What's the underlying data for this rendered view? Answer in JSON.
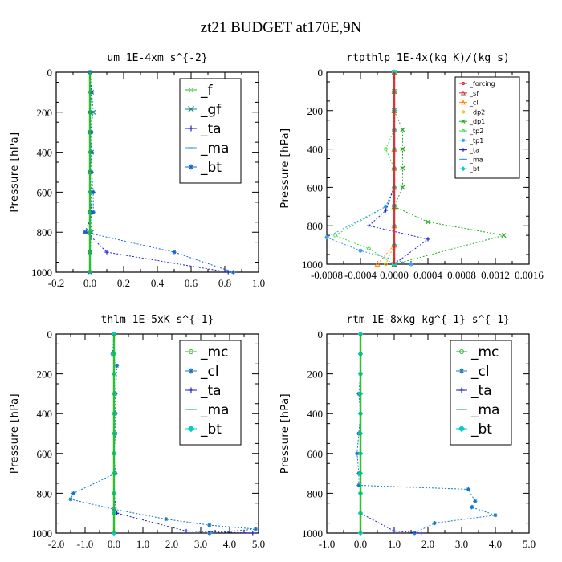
{
  "figure_title": "zt21  BUDGET at170E,9N",
  "chart_data": [
    {
      "type": "line",
      "title": "um  1E-4xm s^{-2}",
      "ylabel": "Pressure [hPa]",
      "xlim": [
        -0.2,
        1.0
      ],
      "ylim": [
        1000,
        0
      ],
      "xticks": [
        -0.2,
        0.0,
        0.2,
        0.4,
        0.6,
        0.8,
        1.0
      ],
      "xtick_labels": [
        "-0.2",
        "0.0",
        "0.2",
        "0.4",
        "0.6",
        "0.8",
        "1.0"
      ],
      "yticks": [
        0,
        200,
        400,
        600,
        800,
        1000
      ],
      "ytick_labels": [
        "0",
        "200",
        "400",
        "600",
        "800",
        "1000"
      ],
      "legend_position": "top-right",
      "legend_size": "large",
      "series": [
        {
          "name": "_f",
          "color": "#22bb22",
          "marker": "circle",
          "x": [
            0.0,
            0.0,
            0.0,
            0.0,
            0.0,
            0.0,
            0.0,
            0.0,
            0.0,
            0.0,
            0.0
          ],
          "y": [
            0,
            100,
            200,
            300,
            400,
            500,
            600,
            700,
            800,
            900,
            1000
          ]
        },
        {
          "name": "_gf",
          "color": "#118888",
          "marker": "x",
          "x": [
            0.0,
            0.01,
            0.02,
            0.0,
            0.01,
            0.0,
            0.01,
            0.0,
            0.01,
            0.0,
            0.0
          ],
          "y": [
            0,
            100,
            200,
            300,
            400,
            500,
            600,
            700,
            800,
            900,
            1000
          ]
        },
        {
          "name": "_ta",
          "color": "#2222cc",
          "marker": "plus",
          "x": [
            0.0,
            0.01,
            0.0,
            0.0,
            0.0,
            0.0,
            0.0,
            0.01,
            -0.02,
            0.1,
            0.82
          ],
          "y": [
            0,
            100,
            200,
            300,
            400,
            500,
            600,
            700,
            800,
            900,
            1000
          ]
        },
        {
          "name": "_ma",
          "color": "#3399dd",
          "marker": "dash",
          "x": [
            0.0,
            0.0,
            0.0,
            0.0,
            0.0,
            0.0,
            0.0,
            0.0,
            0.0,
            0.0,
            0.0
          ],
          "y": [
            0,
            100,
            200,
            300,
            400,
            500,
            600,
            700,
            800,
            900,
            1000
          ]
        },
        {
          "name": "_bt",
          "color": "#1166cc",
          "marker": "star",
          "x": [
            0.0,
            0.01,
            0.0,
            0.01,
            0.01,
            0.01,
            0.02,
            0.02,
            -0.03,
            0.5,
            0.85
          ],
          "y": [
            0,
            100,
            200,
            300,
            400,
            500,
            600,
            700,
            800,
            900,
            1000
          ]
        }
      ]
    },
    {
      "type": "line",
      "title": "rtpthlp  1E-4x(kg K)/(kg s)",
      "ylabel": "Pressure [hPa]",
      "xlim": [
        -0.0008,
        0.0016
      ],
      "ylim": [
        1000,
        0
      ],
      "xticks": [
        -0.0008,
        -0.0004,
        0.0,
        0.0004,
        0.0008,
        0.0012,
        0.0016
      ],
      "xtick_labels": [
        "-0.0008",
        "-0.0004",
        "0.0000",
        "0.0004",
        "0.0008",
        "0.0012",
        "0.0016"
      ],
      "yticks": [
        0,
        200,
        400,
        600,
        800,
        1000
      ],
      "ytick_labels": [
        "0",
        "200",
        "400",
        "600",
        "800",
        "1000"
      ],
      "legend_position": "top-right",
      "legend_size": "small",
      "series": [
        {
          "name": "_forcing",
          "color": "#dd2222",
          "marker": "circle",
          "x": [
            0.0,
            0.0,
            0.0,
            0.0,
            0.0,
            0.0,
            0.0,
            0.0,
            0.0,
            0.0,
            0.0
          ],
          "y": [
            0,
            100,
            200,
            300,
            400,
            500,
            600,
            700,
            800,
            900,
            1000
          ]
        },
        {
          "name": "_sf",
          "color": "#cc3333",
          "marker": "tri",
          "x": [
            0.0,
            0.0,
            0.0,
            0.0,
            0.0,
            0.0,
            0.0,
            0.0,
            0.0,
            0.0,
            0.0
          ],
          "y": [
            0,
            100,
            200,
            300,
            400,
            500,
            600,
            700,
            800,
            900,
            1000
          ]
        },
        {
          "name": "_cl",
          "color": "#ff8800",
          "marker": "tri",
          "x": [
            0.0,
            0.0,
            0.0,
            0.0,
            0.0,
            0.0,
            0.0,
            0.0,
            0.0,
            0.0,
            -0.0002
          ],
          "y": [
            0,
            100,
            200,
            300,
            400,
            500,
            600,
            700,
            800,
            900,
            1000
          ]
        },
        {
          "name": "_dp2",
          "color": "#ddbb00",
          "marker": "circle",
          "x": [
            0.0,
            0.0,
            0.0,
            0.0,
            0.0,
            0.0,
            0.0,
            0.0,
            0.0,
            0.0,
            -0.0001
          ],
          "y": [
            0,
            100,
            200,
            300,
            400,
            500,
            600,
            700,
            800,
            900,
            1000
          ]
        },
        {
          "name": "_dp1",
          "color": "#22aa22",
          "marker": "x",
          "x": [
            0.0,
            0.0,
            0.0,
            0.0001,
            0.0001,
            0.0001,
            0.0001,
            0.0,
            0.0004,
            0.0013,
            0.0
          ],
          "y": [
            0,
            100,
            200,
            300,
            400,
            500,
            600,
            700,
            780,
            850,
            1000
          ]
        },
        {
          "name": "_tp2",
          "color": "#44dd44",
          "marker": "circle",
          "x": [
            0.0,
            0.0,
            0.0,
            0.0,
            -0.0001,
            0.0,
            0.0,
            -0.0001,
            -0.0007,
            -0.0003,
            0.0
          ],
          "y": [
            0,
            100,
            200,
            300,
            400,
            500,
            600,
            700,
            850,
            920,
            1000
          ]
        },
        {
          "name": "_tp1",
          "color": "#3399ff",
          "marker": "star",
          "x": [
            0.0,
            0.0,
            0.0,
            0.0,
            0.0,
            0.0,
            0.0,
            -0.0001,
            -0.0008,
            -0.0004,
            0.0002
          ],
          "y": [
            0,
            100,
            200,
            300,
            400,
            500,
            600,
            700,
            860,
            930,
            1000
          ]
        },
        {
          "name": "_ta",
          "color": "#2222cc",
          "marker": "plus",
          "x": [
            0.0,
            0.0,
            0.0,
            0.0,
            0.0,
            0.0,
            0.0,
            -0.0001,
            -0.0003,
            0.0004,
            0.0
          ],
          "y": [
            0,
            100,
            200,
            300,
            400,
            500,
            600,
            720,
            800,
            870,
            1000
          ]
        },
        {
          "name": "_ma",
          "color": "#3399dd",
          "marker": "dash",
          "x": [
            0.0,
            0.0,
            0.0,
            0.0,
            0.0,
            0.0,
            0.0,
            0.0,
            0.0,
            0.0,
            0.0
          ],
          "y": [
            0,
            100,
            200,
            300,
            400,
            500,
            600,
            700,
            800,
            900,
            1000
          ]
        },
        {
          "name": "_bt",
          "color": "#00cccc",
          "marker": "diamond",
          "x": [
            0.0,
            0.0,
            0.0,
            0.0,
            0.0,
            0.0,
            0.0,
            0.0,
            0.0,
            0.0,
            0.0
          ],
          "y": [
            0,
            100,
            200,
            300,
            400,
            500,
            600,
            700,
            800,
            900,
            1000
          ]
        }
      ]
    },
    {
      "type": "line",
      "title": "thlm  1E-5xK s^{-1}",
      "ylabel": "Pressure [hPa]",
      "xlim": [
        -2.0,
        5.0
      ],
      "ylim": [
        1000,
        0
      ],
      "xticks": [
        -2.0,
        -1.0,
        0.0,
        1.0,
        2.0,
        3.0,
        4.0,
        5.0
      ],
      "xtick_labels": [
        "-2.0",
        "-1.0",
        "0.0",
        "1.0",
        "2.0",
        "3.0",
        "4.0",
        "5.0"
      ],
      "yticks": [
        0,
        200,
        400,
        600,
        800,
        1000
      ],
      "ytick_labels": [
        "0",
        "200",
        "400",
        "600",
        "800",
        "1000"
      ],
      "legend_position": "top-right",
      "legend_size": "large",
      "series": [
        {
          "name": "_mc",
          "color": "#22bb22",
          "marker": "circle",
          "x": [
            0.0,
            0.0,
            0.0,
            0.0,
            0.0,
            0.0,
            0.0,
            0.0,
            0.0,
            0.0,
            0.0
          ],
          "y": [
            0,
            100,
            200,
            300,
            400,
            500,
            600,
            700,
            800,
            900,
            1000
          ]
        },
        {
          "name": "_cl",
          "color": "#1177cc",
          "marker": "star",
          "x": [
            0.0,
            -0.05,
            0.1,
            0.05,
            0.05,
            0.05,
            0.0,
            0.05,
            -1.4,
            -1.5,
            0.0,
            1.8,
            3.3,
            4.9,
            3.3
          ],
          "y": [
            0,
            100,
            160,
            300,
            400,
            500,
            600,
            700,
            800,
            830,
            880,
            930,
            960,
            980,
            1000
          ]
        },
        {
          "name": "_ta",
          "color": "#2222cc",
          "marker": "plus",
          "x": [
            0.0,
            0.0,
            0.0,
            0.0,
            0.0,
            0.0,
            0.0,
            0.0,
            0.0,
            0.1,
            2.5,
            4.8
          ],
          "y": [
            0,
            100,
            200,
            300,
            400,
            500,
            600,
            700,
            800,
            900,
            990,
            1000
          ]
        },
        {
          "name": "_ma",
          "color": "#3399dd",
          "marker": "dash",
          "x": [
            0.0,
            0.0,
            0.0,
            0.0,
            0.0,
            0.0,
            0.0,
            0.0,
            0.0,
            0.0,
            0.0
          ],
          "y": [
            0,
            100,
            200,
            300,
            400,
            500,
            600,
            700,
            800,
            900,
            1000
          ]
        },
        {
          "name": "_bt",
          "color": "#00cccc",
          "marker": "diamond",
          "x": [
            0.0,
            0.0,
            0.0,
            0.0,
            0.0,
            0.0,
            0.0,
            0.0,
            0.0,
            0.0,
            0.0
          ],
          "y": [
            0,
            100,
            200,
            300,
            400,
            500,
            600,
            700,
            800,
            900,
            1000
          ]
        }
      ]
    },
    {
      "type": "line",
      "title": "rtm  1E-8xkg kg^{-1} s^{-1}",
      "ylabel": "Pressure [hPa]",
      "xlim": [
        -1.0,
        5.0
      ],
      "ylim": [
        1000,
        0
      ],
      "xticks": [
        -1.0,
        0.0,
        1.0,
        2.0,
        3.0,
        4.0,
        5.0
      ],
      "xtick_labels": [
        "-1.0",
        "0.0",
        "1.0",
        "2.0",
        "3.0",
        "4.0",
        "5.0"
      ],
      "yticks": [
        0,
        200,
        400,
        600,
        800,
        1000
      ],
      "ytick_labels": [
        "0",
        "200",
        "400",
        "600",
        "800",
        "1000"
      ],
      "legend_position": "top-right",
      "legend_size": "large",
      "series": [
        {
          "name": "_mc",
          "color": "#22bb22",
          "marker": "circle",
          "x": [
            0.0,
            0.0,
            0.0,
            0.0,
            0.0,
            0.0,
            0.0,
            0.0,
            0.0,
            0.0,
            0.0
          ],
          "y": [
            0,
            100,
            200,
            300,
            400,
            500,
            600,
            700,
            800,
            900,
            1000
          ]
        },
        {
          "name": "_cl",
          "color": "#1177cc",
          "marker": "star",
          "x": [
            0.0,
            0.0,
            0.0,
            -0.05,
            0.0,
            -0.05,
            -0.1,
            -0.05,
            -0.05,
            3.2,
            3.4,
            3.3,
            4.0,
            2.2,
            1.6
          ],
          "y": [
            0,
            100,
            200,
            300,
            400,
            500,
            600,
            700,
            760,
            780,
            840,
            870,
            910,
            950,
            1000
          ]
        },
        {
          "name": "_ta",
          "color": "#2222cc",
          "marker": "plus",
          "x": [
            0.0,
            0.0,
            0.0,
            0.0,
            0.0,
            0.0,
            0.0,
            0.0,
            0.0,
            0.0,
            1.0,
            1.8
          ],
          "y": [
            0,
            100,
            200,
            300,
            400,
            500,
            600,
            700,
            800,
            900,
            990,
            1000
          ]
        },
        {
          "name": "_ma",
          "color": "#3399dd",
          "marker": "dash",
          "x": [
            0.0,
            0.0,
            0.0,
            0.0,
            0.0,
            0.0,
            0.0,
            0.0,
            0.0,
            0.0,
            0.0
          ],
          "y": [
            0,
            100,
            200,
            300,
            400,
            500,
            600,
            700,
            800,
            900,
            1000
          ]
        },
        {
          "name": "_bt",
          "color": "#00cccc",
          "marker": "diamond",
          "x": [
            0.0,
            0.0,
            0.0,
            0.0,
            0.0,
            0.0,
            0.0,
            0.0,
            0.0,
            0.0,
            0.0
          ],
          "y": [
            0,
            100,
            200,
            300,
            400,
            500,
            600,
            700,
            800,
            900,
            1000
          ]
        }
      ]
    }
  ]
}
